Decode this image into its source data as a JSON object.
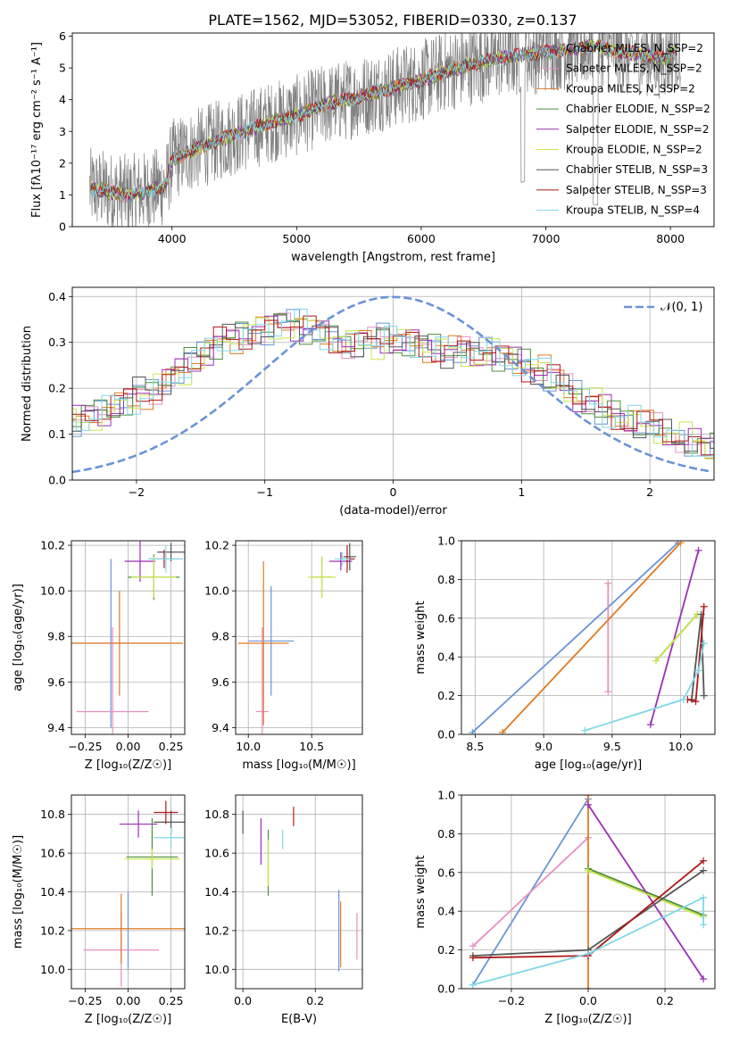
{
  "figure_title": "PLATE=1562, MJD=53052, FIBERID=0330, z=0.137",
  "palette": {
    "Chabrier MILES": "#6a93d8",
    "Salpeter MILES": "#e58fc0",
    "Kroupa MILES": "#e07a20",
    "Chabrier ELODIE": "#4f8f3a",
    "Salpeter ELODIE": "#9b2fb5",
    "Kroupa ELODIE": "#c8e64a",
    "Chabrier STELIB": "#555555",
    "Salpeter STELIB": "#b01818",
    "Kroupa STELIB": "#7fd8e6",
    "spectrum": "#808080",
    "normal": "#6a93d8"
  },
  "chart_data": [
    {
      "id": "spectrum",
      "type": "line",
      "xlabel": "wavelength [Angstrom, rest frame]",
      "ylabel": "Flux [f$_\\lambda$10$^{-17}$ erg cm$^{-2}$ s$^{-1}$ A$^{-1}$]",
      "ylabel_display": "Flux [fλ10⁻¹⁷ erg cm⁻² s⁻¹ A⁻¹]",
      "xlim": [
        3200,
        8350
      ],
      "ylim": [
        0,
        6.1
      ],
      "xticks": [
        4000,
        5000,
        6000,
        7000,
        8000
      ],
      "yticks": [
        0,
        1,
        2,
        3,
        4,
        5,
        6
      ],
      "legend_position": "right",
      "trend": {
        "x": [
          3350,
          3450,
          3550,
          3650,
          3800,
          3950,
          4000,
          4100,
          4300,
          4500,
          4800,
          5000,
          5200,
          5500,
          5800,
          6000,
          6200,
          6400,
          6600,
          6800,
          7000,
          7200,
          7400,
          7600,
          7800,
          7950,
          8050
        ],
        "y": [
          1.2,
          1.15,
          1.05,
          1.0,
          1.1,
          1.3,
          2.1,
          2.3,
          2.6,
          2.9,
          3.3,
          3.5,
          3.8,
          4.1,
          4.4,
          4.6,
          4.9,
          5.1,
          5.3,
          5.4,
          5.5,
          5.6,
          5.7,
          5.5,
          5.4,
          5.3,
          5.6
        ]
      },
      "legend": [
        "Chabrier MILES, N$_{SSP}$=2",
        "Salpeter MILES, N$_{SSP}$=2",
        "Kroupa MILES, N$_{SSP}$=2",
        "Chabrier ELODIE, N$_{SSP}$=2",
        "Salpeter ELODIE, N$_{SSP}$=2",
        "Kroupa ELODIE, N$_{SSP}$=2",
        "Chabrier STELIB, N$_{SSP}$=3",
        "Salpeter STELIB, N$_{SSP}$=3",
        "Kroupa STELIB, N$_{SSP}$=4"
      ],
      "legend_display": [
        "Chabrier MILES, N_SSP=2",
        "Salpeter MILES, N_SSP=2",
        "Kroupa MILES, N_SSP=2",
        "Chabrier ELODIE, N_SSP=2",
        "Salpeter ELODIE, N_SSP=2",
        "Kroupa ELODIE, N_SSP=2",
        "Chabrier STELIB, N_SSP=3",
        "Salpeter STELIB, N_SSP=3",
        "Kroupa STELIB, N_SSP=4"
      ]
    },
    {
      "id": "residuals",
      "type": "histogram",
      "xlabel": "(data-model)/error",
      "ylabel": "Normed distribution",
      "xlim": [
        -2.5,
        2.5
      ],
      "ylim": [
        0,
        0.42
      ],
      "xticks": [
        -2,
        -1,
        0,
        1,
        2
      ],
      "yticks": [
        0.0,
        0.1,
        0.2,
        0.3,
        0.4
      ],
      "grid": true,
      "legend": [
        "$\\mathcal{N}(0,1)$"
      ],
      "legend_display": [
        "𝒩(0, 1)"
      ],
      "legend_position": "top-right",
      "bin_width": 0.1,
      "base_hist": [
        0.05,
        0.06,
        0.07,
        0.07,
        0.08,
        0.09,
        0.1,
        0.11,
        0.12,
        0.12,
        0.13,
        0.14,
        0.15,
        0.16,
        0.17,
        0.19,
        0.2,
        0.22,
        0.24,
        0.26,
        0.28,
        0.3,
        0.31,
        0.32,
        0.33,
        0.33,
        0.34,
        0.34,
        0.33,
        0.32,
        0.31,
        0.3,
        0.3,
        0.3,
        0.31,
        0.3,
        0.3,
        0.29,
        0.29,
        0.28,
        0.28,
        0.27,
        0.28,
        0.27,
        0.26,
        0.25,
        0.24,
        0.22,
        0.2,
        0.18,
        0.17,
        0.15,
        0.14,
        0.13,
        0.12,
        0.11,
        0.1,
        0.09,
        0.08,
        0.07,
        0.07,
        0.06,
        0.05,
        0.05,
        0.04,
        0.04,
        0.03,
        0.03,
        0.03,
        0.02
      ]
    },
    {
      "id": "age-vs-Z",
      "type": "errorbar",
      "xlabel": "Z [log$_{10}$($Z/Z_\\odot$)]",
      "xlabel_display": "Z [log₁₀(Z/Z☉)]",
      "ylabel": "age  [log$_{10}$($age/yr$)]",
      "ylabel_display": "age  [log₁₀(age/yr)]",
      "xlim": [
        -0.33,
        0.33
      ],
      "ylim": [
        9.37,
        10.22
      ],
      "xticks": [
        -0.25,
        0.0,
        0.25
      ],
      "yticks": [
        9.4,
        9.6,
        9.8,
        10.0,
        10.2
      ],
      "grid": true,
      "points": [
        {
          "model": "Chabrier MILES",
          "x": -0.1,
          "xerr": 0.4,
          "y": 9.77,
          "yerr": 0.37
        },
        {
          "model": "Salpeter MILES",
          "x": -0.09,
          "xerr": 0.21,
          "y": 9.47,
          "yerr": 0.37
        },
        {
          "model": "Kroupa MILES",
          "x": -0.05,
          "xerr": 0.37,
          "y": 9.77,
          "yerr": 0.23
        },
        {
          "model": "Chabrier ELODIE",
          "x": 0.15,
          "xerr": 0.15,
          "y": 10.06,
          "yerr": 0.1
        },
        {
          "model": "Salpeter ELODIE",
          "x": 0.07,
          "xerr": 0.09,
          "y": 10.13,
          "yerr": 0.09
        },
        {
          "model": "Kroupa ELODIE",
          "x": 0.15,
          "xerr": 0.13,
          "y": 10.06,
          "yerr": 0.09
        },
        {
          "model": "Chabrier STELIB",
          "x": 0.25,
          "xerr": 0.08,
          "y": 10.17,
          "yerr": 0.04
        },
        {
          "model": "Salpeter STELIB",
          "x": 0.21,
          "xerr": 0.09,
          "y": 10.14,
          "yerr": 0.04
        },
        {
          "model": "Kroupa STELIB",
          "x": 0.22,
          "xerr": 0.1,
          "y": 10.14,
          "yerr": 0.06
        }
      ]
    },
    {
      "id": "age-vs-mass",
      "type": "errorbar",
      "xlabel": "mass [log$_{10}$($M/M_\\odot$)]",
      "xlabel_display": "mass [log₁₀(M/M☉)]",
      "xlim": [
        9.9,
        10.9
      ],
      "ylim": [
        9.37,
        10.22
      ],
      "xticks": [
        10.0,
        10.5
      ],
      "yticks": [
        9.4,
        9.6,
        9.8,
        10.0,
        10.2
      ],
      "grid": true,
      "points": [
        {
          "model": "Chabrier MILES",
          "x": 10.18,
          "xerr": 0.18,
          "y": 9.78,
          "yerr": 0.24
        },
        {
          "model": "Salpeter MILES",
          "x": 10.11,
          "xerr": 0.05,
          "y": 9.47,
          "yerr": 0.37
        },
        {
          "model": "Kroupa MILES",
          "x": 10.12,
          "xerr": 0.2,
          "y": 9.77,
          "yerr": 0.36
        },
        {
          "model": "Chabrier ELODIE",
          "x": 10.58,
          "xerr": 0.08,
          "y": 10.06,
          "yerr": 0.09
        },
        {
          "model": "Salpeter ELODIE",
          "x": 10.73,
          "xerr": 0.09,
          "y": 10.13,
          "yerr": 0.04
        },
        {
          "model": "Kroupa ELODIE",
          "x": 10.58,
          "xerr": 0.11,
          "y": 10.06,
          "yerr": 0.09
        },
        {
          "model": "Chabrier STELIB",
          "x": 10.8,
          "xerr": 0.05,
          "y": 10.15,
          "yerr": 0.06
        },
        {
          "model": "Salpeter STELIB",
          "x": 10.78,
          "xerr": 0.06,
          "y": 10.14,
          "yerr": 0.06
        },
        {
          "model": "Kroupa STELIB",
          "x": 10.74,
          "xerr": 0.06,
          "y": 10.14,
          "yerr": 0.03
        }
      ]
    },
    {
      "id": "weight-vs-age",
      "type": "line",
      "xlabel": "age  [log$_{10}$($age/yr$)]",
      "xlabel_display": "age  [log₁₀(age/yr)]",
      "ylabel": "mass weight",
      "xlim": [
        8.4,
        10.25
      ],
      "ylim": [
        0,
        1
      ],
      "xticks": [
        8.5,
        9.0,
        9.5,
        10.0
      ],
      "yticks": [
        0.0,
        0.2,
        0.4,
        0.6,
        0.8,
        1.0
      ],
      "grid": true,
      "series": [
        {
          "model": "Chabrier MILES",
          "x": [
            8.48,
            9.98
          ],
          "y": [
            0.01,
            0.99
          ]
        },
        {
          "model": "Salpeter MILES",
          "x": [
            9.47,
            9.47
          ],
          "y": [
            0.22,
            0.78
          ]
        },
        {
          "model": "Kroupa MILES",
          "x": [
            8.7,
            10.0
          ],
          "y": [
            0.01,
            0.99
          ]
        },
        {
          "model": "Chabrier ELODIE",
          "x": [
            9.82,
            10.12
          ],
          "y": [
            0.38,
            0.62
          ]
        },
        {
          "model": "Salpeter ELODIE",
          "x": [
            9.78,
            10.13
          ],
          "y": [
            0.05,
            0.95
          ]
        },
        {
          "model": "Kroupa ELODIE",
          "x": [
            9.82,
            10.12
          ],
          "y": [
            0.38,
            0.62
          ]
        },
        {
          "model": "Chabrier STELIB",
          "x": [
            10.08,
            10.15,
            10.17
          ],
          "y": [
            0.18,
            0.62,
            0.2
          ]
        },
        {
          "model": "Salpeter STELIB",
          "x": [
            10.05,
            10.11,
            10.17
          ],
          "y": [
            0.18,
            0.17,
            0.66
          ]
        },
        {
          "model": "Kroupa STELIB",
          "x": [
            9.3,
            10.02,
            10.13,
            10.17
          ],
          "y": [
            0.02,
            0.18,
            0.33,
            0.47
          ]
        }
      ]
    },
    {
      "id": "mass-vs-Z",
      "type": "errorbar",
      "xlabel": "Z [log$_{10}$($Z/Z_\\odot$)]",
      "xlabel_display": "Z [log₁₀(Z/Z☉)]",
      "ylabel": "mass [log$_{10}$($M/M_\\odot$)]",
      "ylabel_display": "mass [log₁₀(M/M☉)]",
      "xlim": [
        -0.33,
        0.33
      ],
      "ylim": [
        9.9,
        10.9
      ],
      "xticks": [
        -0.25,
        0.0,
        0.25
      ],
      "yticks": [
        10.0,
        10.2,
        10.4,
        10.6,
        10.8
      ],
      "grid": true,
      "points": [
        {
          "model": "Chabrier MILES",
          "x": 0.0,
          "xerr": 0.0,
          "y": 10.2,
          "yerr": 0.2
        },
        {
          "model": "Salpeter MILES",
          "x": -0.04,
          "xerr": 0.22,
          "y": 10.1,
          "yerr": 0.19
        },
        {
          "model": "Kroupa MILES",
          "x": -0.04,
          "xerr": 0.37,
          "y": 10.21,
          "yerr": 0.18
        },
        {
          "model": "Chabrier ELODIE",
          "x": 0.14,
          "xerr": 0.15,
          "y": 10.58,
          "yerr": 0.2
        },
        {
          "model": "Salpeter ELODIE",
          "x": 0.06,
          "xerr": 0.11,
          "y": 10.75,
          "yerr": 0.07
        },
        {
          "model": "Kroupa ELODIE",
          "x": 0.14,
          "xerr": 0.16,
          "y": 10.57,
          "yerr": 0.05
        },
        {
          "model": "Chabrier STELIB",
          "x": 0.25,
          "xerr": 0.1,
          "y": 10.76,
          "yerr": 0.06
        },
        {
          "model": "Salpeter STELIB",
          "x": 0.22,
          "xerr": 0.07,
          "y": 10.81,
          "yerr": 0.06
        },
        {
          "model": "Kroupa STELIB",
          "x": 0.25,
          "xerr": 0.1,
          "y": 10.68,
          "yerr": 0.05
        }
      ]
    },
    {
      "id": "mass-vs-ebv",
      "type": "errorbar",
      "xlabel": "E(B-V)",
      "xlim": [
        -0.02,
        0.33
      ],
      "ylim": [
        9.9,
        10.9
      ],
      "xticks": [
        0.0,
        0.2
      ],
      "yticks": [
        10.0,
        10.2,
        10.4,
        10.6,
        10.8
      ],
      "grid": true,
      "points": [
        {
          "model": "Chabrier MILES",
          "x": 0.265,
          "xerr": 0.0,
          "y": 10.2,
          "yerr": 0.21
        },
        {
          "model": "Salpeter MILES",
          "x": 0.315,
          "xerr": 0.0,
          "y": 10.17,
          "yerr": 0.12
        },
        {
          "model": "Kroupa MILES",
          "x": 0.27,
          "xerr": 0.0,
          "y": 10.18,
          "yerr": 0.17
        },
        {
          "model": "Chabrier ELODIE",
          "x": 0.07,
          "xerr": 0.0,
          "y": 10.55,
          "yerr": 0.17
        },
        {
          "model": "Salpeter ELODIE",
          "x": 0.05,
          "xerr": 0.0,
          "y": 10.66,
          "yerr": 0.12
        },
        {
          "model": "Kroupa ELODIE",
          "x": 0.07,
          "xerr": 0.0,
          "y": 10.55,
          "yerr": 0.12
        },
        {
          "model": "Chabrier STELIB",
          "x": 0.0,
          "xerr": 0.0,
          "y": 10.76,
          "yerr": 0.06
        },
        {
          "model": "Salpeter STELIB",
          "x": 0.14,
          "xerr": 0.0,
          "y": 10.79,
          "yerr": 0.05
        },
        {
          "model": "Kroupa STELIB",
          "x": 0.11,
          "xerr": 0.0,
          "y": 10.67,
          "yerr": 0.05
        }
      ]
    },
    {
      "id": "weight-vs-Z",
      "type": "line",
      "xlabel": "Z [log$_{10}$($Z/Z_\\odot$)]",
      "xlabel_display": "Z [log₁₀(Z/Z☉)]",
      "ylabel": "mass weight",
      "xlim": [
        -0.33,
        0.33
      ],
      "ylim": [
        0,
        1
      ],
      "xticks": [
        -0.2,
        0.0,
        0.2
      ],
      "yticks": [
        0.0,
        0.2,
        0.4,
        0.6,
        0.8,
        1.0
      ],
      "grid": true,
      "series": [
        {
          "model": "Chabrier MILES",
          "x": [
            -0.3,
            0.0
          ],
          "y": [
            0.02,
            0.98
          ]
        },
        {
          "model": "Salpeter MILES",
          "x": [
            -0.3,
            0.0
          ],
          "y": [
            0.22,
            0.78
          ]
        },
        {
          "model": "Kroupa MILES",
          "x": [
            0.0,
            0.0
          ],
          "y": [
            0.0,
            1.0
          ]
        },
        {
          "model": "Chabrier ELODIE",
          "x": [
            0.0,
            0.3
          ],
          "y": [
            0.62,
            0.38
          ]
        },
        {
          "model": "Salpeter ELODIE",
          "x": [
            0.0,
            0.3
          ],
          "y": [
            0.95,
            0.05
          ]
        },
        {
          "model": "Kroupa ELODIE",
          "x": [
            0.0,
            0.3
          ],
          "y": [
            0.61,
            0.37
          ]
        },
        {
          "model": "Chabrier STELIB",
          "x": [
            -0.3,
            0.0,
            0.3
          ],
          "y": [
            0.17,
            0.2,
            0.61
          ]
        },
        {
          "model": "Salpeter STELIB",
          "x": [
            -0.3,
            0.0,
            0.3
          ],
          "y": [
            0.16,
            0.17,
            0.66
          ]
        },
        {
          "model": "Kroupa STELIB",
          "x": [
            -0.3,
            0.0,
            0.3,
            0.3
          ],
          "y": [
            0.02,
            0.18,
            0.47,
            0.33
          ]
        }
      ]
    }
  ]
}
